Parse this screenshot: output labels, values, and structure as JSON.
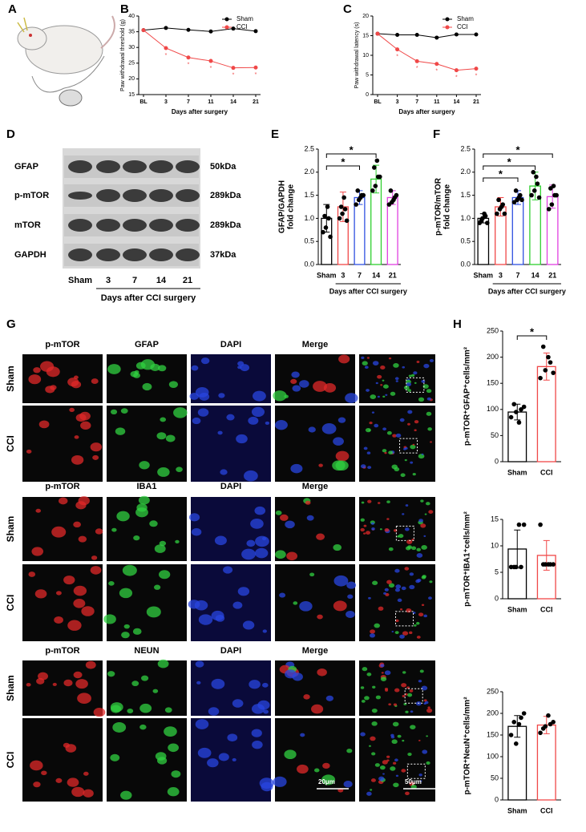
{
  "panel_labels": [
    "A",
    "B",
    "C",
    "D",
    "E",
    "F",
    "G",
    "H"
  ],
  "chart_data": [
    {
      "type": "line",
      "ylabel": "Paw withdrawal threshold (g)",
      "xlabel": "Days after surgery",
      "categories": [
        "BL",
        "3",
        "7",
        "11",
        "14",
        "21"
      ],
      "ylim": [
        15,
        40
      ],
      "yticks": [
        15,
        20,
        25,
        30,
        35,
        40
      ],
      "legend": "upper right",
      "series": [
        {
          "name": "Sham",
          "color": "#000000",
          "values": [
            35.5,
            36.2,
            35.6,
            35.1,
            36.0,
            35.2
          ]
        },
        {
          "name": "CCI",
          "color": "#f04848",
          "values": [
            35.5,
            29.8,
            26.8,
            25.7,
            23.5,
            23.6
          ],
          "significance_labels": [
            null,
            "*",
            "*",
            "*",
            "*",
            "*"
          ]
        }
      ]
    },
    {
      "type": "line",
      "ylabel": "Paw withdrawal latency (s)",
      "xlabel": "Days after surgery",
      "categories": [
        "BL",
        "3",
        "7",
        "11",
        "14",
        "21"
      ],
      "ylim": [
        0,
        20
      ],
      "yticks": [
        0,
        5,
        10,
        15,
        20
      ],
      "legend": "upper right",
      "series": [
        {
          "name": "Sham",
          "color": "#000000",
          "values": [
            15.5,
            15.2,
            15.2,
            14.5,
            15.3,
            15.3
          ]
        },
        {
          "name": "CCI",
          "color": "#f04848",
          "values": [
            15.5,
            11.5,
            8.5,
            7.8,
            6.2,
            6.6
          ],
          "significance_labels": [
            null,
            "*",
            "*",
            "*",
            "*",
            "*"
          ]
        }
      ]
    },
    {
      "type": "bar",
      "ylabel": [
        "GFAP/GAPDH",
        "fold change"
      ],
      "xlabel": "Days after CCI surgery",
      "categories": [
        "Sham",
        "3",
        "7",
        "14",
        "21"
      ],
      "values": [
        1.0,
        1.25,
        1.45,
        1.85,
        1.45
      ],
      "errors": [
        0.3,
        0.32,
        0.15,
        0.3,
        0.15
      ],
      "colors": [
        "#000000",
        "#f04848",
        "#3050e0",
        "#30d030",
        "#e040e0"
      ],
      "points": [
        [
          0.7,
          0.8,
          1.0,
          1.05,
          1.25,
          0.6
        ],
        [
          1.0,
          1.1,
          1.2,
          1.25,
          1.45,
          0.95
        ],
        [
          1.3,
          1.4,
          1.5,
          1.6,
          1.45,
          1.5
        ],
        [
          1.6,
          1.7,
          1.9,
          2.1,
          2.25,
          1.9
        ],
        [
          1.3,
          1.35,
          1.45,
          1.6,
          1.4,
          1.5
        ]
      ],
      "ylim": [
        0,
        2.5
      ],
      "yticks": [
        {
          "value": 0,
          "label": "0.0"
        },
        0.5,
        {
          "value": 1,
          "label": "1.0"
        },
        1.5,
        {
          "value": 2,
          "label": "2.0"
        },
        2.5
      ],
      "significance": [
        {
          "from": 0,
          "to": 2,
          "label": "*"
        },
        {
          "from": 0,
          "to": 3,
          "label": "*"
        }
      ]
    },
    {
      "type": "bar",
      "ylabel": [
        "p-mTOR/mTOR",
        "fold change"
      ],
      "xlabel": "Days after CCI surgery",
      "categories": [
        "Sham",
        "3",
        "7",
        "14",
        "21"
      ],
      "values": [
        1.0,
        1.25,
        1.45,
        1.7,
        1.47
      ],
      "errors": [
        0.1,
        0.2,
        0.15,
        0.3,
        0.25
      ],
      "colors": [
        "#000000",
        "#f04848",
        "#3050e0",
        "#30d030",
        "#e040e0"
      ],
      "points": [
        [
          0.9,
          1.0,
          1.05,
          0.95,
          1.1,
          0.9
        ],
        [
          1.1,
          1.2,
          1.3,
          1.4,
          1.25,
          1.1
        ],
        [
          1.35,
          1.4,
          1.5,
          1.6,
          1.45,
          1.4
        ],
        [
          1.5,
          1.6,
          1.75,
          2.0,
          1.9,
          1.45
        ],
        [
          1.2,
          1.3,
          1.5,
          1.65,
          1.7,
          1.5
        ]
      ],
      "ylim": [
        0,
        2.5
      ],
      "yticks": [
        {
          "value": 0,
          "label": "0.0"
        },
        0.5,
        {
          "value": 1,
          "label": "1.0"
        },
        1.5,
        {
          "value": 2,
          "label": "2.0"
        },
        2.5
      ],
      "significance": [
        {
          "from": 0,
          "to": 2,
          "label": "*"
        },
        {
          "from": 0,
          "to": 3,
          "label": "*"
        },
        {
          "from": 0,
          "to": 4,
          "label": "*"
        }
      ]
    },
    {
      "type": "bar",
      "ylabel": "p-mTOR⁺GFAP⁺cells/mm²",
      "categories": [
        "Sham",
        "CCI"
      ],
      "values": [
        95,
        182
      ],
      "errors": [
        15,
        26
      ],
      "colors": [
        "#000000",
        "#f04848"
      ],
      "points": [
        [
          85,
          95,
          100,
          110,
          75,
          105
        ],
        [
          160,
          175,
          190,
          220,
          200,
          170
        ]
      ],
      "ylim": [
        0,
        250
      ],
      "yticks": [
        0,
        50,
        100,
        150,
        200,
        250
      ],
      "significance": [
        {
          "from": 0,
          "to": 1,
          "label": "*"
        }
      ]
    },
    {
      "type": "bar",
      "ylabel": "p-mTOR⁺IBA1⁺cells/mm²",
      "categories": [
        "Sham",
        "CCI"
      ],
      "values": [
        9.4,
        8.2
      ],
      "errors": [
        3.6,
        2.8
      ],
      "colors": [
        "#000000",
        "#f04848"
      ],
      "points": [
        [
          6,
          6,
          6,
          6,
          14,
          14
        ],
        [
          14,
          6.5,
          6.5,
          6.5,
          6.5,
          6.5
        ]
      ],
      "ylim": [
        0,
        15
      ],
      "yticks": [
        0,
        5,
        10,
        15
      ]
    },
    {
      "type": "bar",
      "ylabel": "p-mTOR⁺NeuN⁺cells/mm²",
      "categories": [
        "Sham",
        "CCI"
      ],
      "values": [
        170,
        173
      ],
      "errors": [
        25,
        20
      ],
      "colors": [
        "#000000",
        "#f04848"
      ],
      "points": [
        [
          150,
          130,
          190,
          180,
          175,
          200
        ],
        [
          155,
          170,
          175,
          165,
          195,
          180
        ]
      ],
      "ylim": [
        0,
        250
      ],
      "yticks": [
        0,
        50,
        100,
        150,
        200,
        250
      ]
    }
  ],
  "western_blot": {
    "proteins": [
      {
        "name": "GFAP",
        "size": "50kDa"
      },
      {
        "name": "p-mTOR",
        "size": "289kDa"
      },
      {
        "name": "mTOR",
        "size": "289kDa"
      },
      {
        "name": "GAPDH",
        "size": "37kDa"
      }
    ],
    "lanes": [
      "Sham",
      "3",
      "7",
      "14",
      "21"
    ],
    "xlabel": "Days after CCI surgery"
  },
  "microscopy": {
    "groups": [
      {
        "columns": [
          "p-mTOR",
          "GFAP",
          "DAPI",
          "Merge"
        ],
        "rows": [
          "Sham",
          "CCI"
        ]
      },
      {
        "columns": [
          "p-mTOR",
          "IBA1",
          "DAPI",
          "Merge"
        ],
        "rows": [
          "Sham",
          "CCI"
        ]
      },
      {
        "columns": [
          "p-mTOR",
          "NEUN",
          "DAPI",
          "Merge"
        ],
        "rows": [
          "Sham",
          "CCI"
        ]
      }
    ],
    "scale_bars": [
      "20μm",
      "50μm"
    ]
  }
}
